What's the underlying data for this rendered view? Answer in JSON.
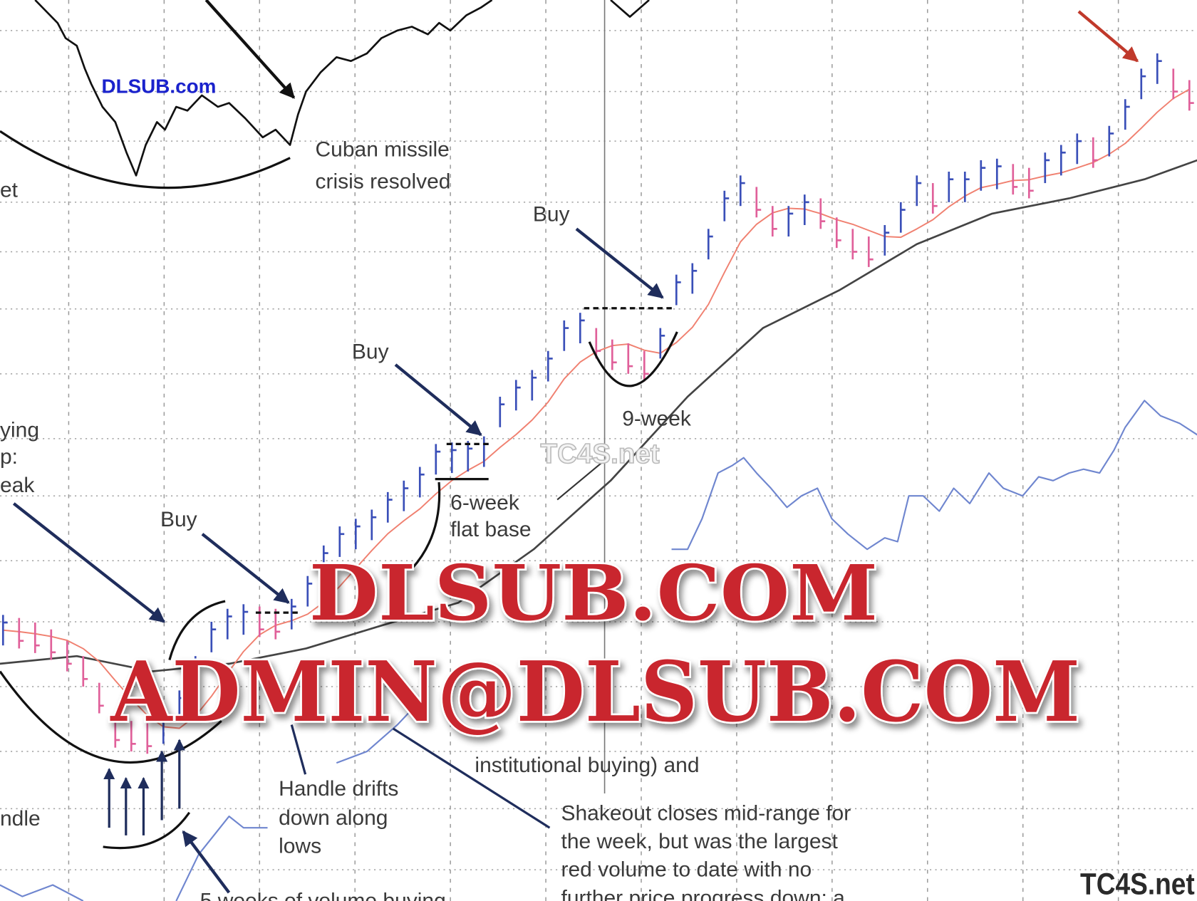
{
  "chart_data": {
    "type": "bar",
    "title": "",
    "xlabel": "",
    "ylabel": "",
    "grid": true,
    "weekly_price": [
      35.5,
      35.1,
      34.5,
      33.6,
      32.1,
      30.1,
      26.6,
      22.1,
      21.6,
      21.3,
      22.6,
      25.6,
      30.1,
      34.6,
      36.3,
      36.9,
      36.6,
      36.3,
      37.6,
      40.6,
      44.6,
      47.1,
      48.1,
      49.3,
      51.6,
      53.1,
      54.9,
      57.9,
      58.1,
      58.3,
      58.9,
      64.1,
      66.3,
      67.6,
      70.1,
      74.1,
      75.1,
      73.1,
      71.6,
      71.1,
      70.1,
      73.1,
      80.1,
      81.6,
      86.1,
      91.1,
      93.1,
      91.6,
      89.1,
      89.1,
      90.6,
      90.1,
      87.6,
      86.1,
      85.1,
      86.6,
      89.6,
      93.1,
      92.1,
      93.6,
      93.6,
      95.1,
      95.3,
      94.6,
      94.1,
      96.1,
      97.1,
      98.6,
      98.1,
      99.6,
      103.1,
      107.1,
      109.1,
      107.1,
      105.6
    ],
    "colors": {
      "up": "#3a4fb8",
      "down": "#e0609a",
      "ma_short": "#f08070",
      "ma_long": "#444444",
      "rs_line": "#6f86cf",
      "market": "#111111",
      "arrow": "#1f2d5c",
      "red_arrow": "#c0392b"
    },
    "ma_long": [
      [
        -0.2,
        31.1
      ],
      [
        4.6,
        32.1
      ],
      [
        9.3,
        30.1
      ],
      [
        14.1,
        31.1
      ],
      [
        18.9,
        33.1
      ],
      [
        23.6,
        36.1
      ],
      [
        28.4,
        39.1
      ],
      [
        33.1,
        46.1
      ],
      [
        37.9,
        55.1
      ],
      [
        42.7,
        66.1
      ],
      [
        47.4,
        75.1
      ],
      [
        52.2,
        80.1
      ],
      [
        57.0,
        86.1
      ],
      [
        61.7,
        90.1
      ],
      [
        66.5,
        92.1
      ],
      [
        71.2,
        94.6
      ],
      [
        74.5,
        97.1
      ]
    ],
    "market_index": [
      [
        [
          2.0,
          118.1
        ],
        [
          3.4,
          115.1
        ],
        [
          3.9,
          113.1
        ],
        [
          4.6,
          112.1
        ],
        [
          5.1,
          109.1
        ],
        [
          5.5,
          107.1
        ],
        [
          6.2,
          104.1
        ],
        [
          7.0,
          102.1
        ],
        [
          7.7,
          98.1
        ],
        [
          8.3,
          95.1
        ],
        [
          8.9,
          99.1
        ],
        [
          9.6,
          102.1
        ],
        [
          10.1,
          101.1
        ],
        [
          10.8,
          104.1
        ],
        [
          11.5,
          103.6
        ],
        [
          12.4,
          105.6
        ],
        [
          13.4,
          104.1
        ],
        [
          14.1,
          104.6
        ],
        [
          15.1,
          102.6
        ],
        [
          16.2,
          100.1
        ],
        [
          17.0,
          101.1
        ],
        [
          17.9,
          99.1
        ],
        [
          18.4,
          103.1
        ],
        [
          18.9,
          106.1
        ],
        [
          19.8,
          108.6
        ],
        [
          20.8,
          110.6
        ],
        [
          21.7,
          110.1
        ],
        [
          22.7,
          111.1
        ],
        [
          23.6,
          113.1
        ],
        [
          24.6,
          114.1
        ],
        [
          25.5,
          114.6
        ],
        [
          26.5,
          113.6
        ],
        [
          27.2,
          115.1
        ],
        [
          27.9,
          114.1
        ],
        [
          28.9,
          116.1
        ],
        [
          29.8,
          117.1
        ],
        [
          30.5,
          118.1
        ]
      ],
      [
        [
          37.9,
          118.1
        ],
        [
          39.1,
          115.9
        ],
        [
          40.3,
          118.1
        ]
      ]
    ],
    "rs_line": [
      [
        [
          -0.2,
          2.1
        ],
        [
          1.2,
          0.6
        ],
        [
          3.1,
          2.1
        ],
        [
          5.0,
          0
        ]
      ],
      [
        [
          10.8,
          0
        ],
        [
          12.2,
          6.1
        ],
        [
          14.1,
          11.1
        ],
        [
          15.0,
          9.6
        ],
        [
          16.5,
          9.6
        ]
      ],
      [
        [
          20.8,
          18.1
        ],
        [
          22.7,
          19.6
        ],
        [
          24.6,
          23.1
        ],
        [
          25.5,
          25.1
        ]
      ],
      [
        [
          41.7,
          46.1
        ],
        [
          42.7,
          46.1
        ],
        [
          43.6,
          50.1
        ],
        [
          44.6,
          56.1
        ],
        [
          45.5,
          57.1
        ],
        [
          46.2,
          58.1
        ],
        [
          47.0,
          56.1
        ],
        [
          47.9,
          54.1
        ],
        [
          48.9,
          51.6
        ],
        [
          49.8,
          53.1
        ],
        [
          50.8,
          54.1
        ],
        [
          51.7,
          50.1
        ],
        [
          52.7,
          48.1
        ],
        [
          53.9,
          46.1
        ],
        [
          55.0,
          47.6
        ],
        [
          55.8,
          47.1
        ],
        [
          56.5,
          53.1
        ],
        [
          57.4,
          53.1
        ],
        [
          58.4,
          51.1
        ],
        [
          59.3,
          54.1
        ],
        [
          60.3,
          52.1
        ],
        [
          61.5,
          56.1
        ],
        [
          62.4,
          54.1
        ],
        [
          63.6,
          53.1
        ],
        [
          64.6,
          55.6
        ],
        [
          65.5,
          55.1
        ],
        [
          66.5,
          56.1
        ],
        [
          67.4,
          56.6
        ],
        [
          68.4,
          56.1
        ],
        [
          69.3,
          59.1
        ],
        [
          70.0,
          62.1
        ],
        [
          71.2,
          65.6
        ],
        [
          72.2,
          63.6
        ],
        [
          73.4,
          62.6
        ],
        [
          74.5,
          61.1
        ]
      ]
    ]
  },
  "annotations": {
    "market_partial": "et",
    "dlsub_small": "DLSUB.com",
    "cuban_1": "Cuban missile",
    "cuban_2": "crisis resolved",
    "buy_1": "Buy",
    "buy_2": "Buy",
    "buy_3": "Buy",
    "nine_week": "9-week",
    "tc4s_watermark": "TC4S.net",
    "buying_1": "ying",
    "buying_2": "p:",
    "buying_3": "eak",
    "six_week_1": "6-week",
    "six_week_2": "flat base",
    "institutional": "institutional buying) and",
    "handle_partial": "ndle",
    "handle_1": "Handle drifts",
    "handle_2": "down along",
    "handle_3": "lows",
    "shakeout_1": "Shakeout closes mid-range for",
    "shakeout_2": "the week, but was the largest",
    "shakeout_3": "red volume to date with no",
    "shakeout_4": "further price progress down; a",
    "volume_partial": "5 weeks of volume buying",
    "tc4s_logo": "TC4S.net"
  },
  "watermarks": {
    "line1": "DLSUB.COM",
    "line2": "ADMIN@DLSUB.COM"
  }
}
